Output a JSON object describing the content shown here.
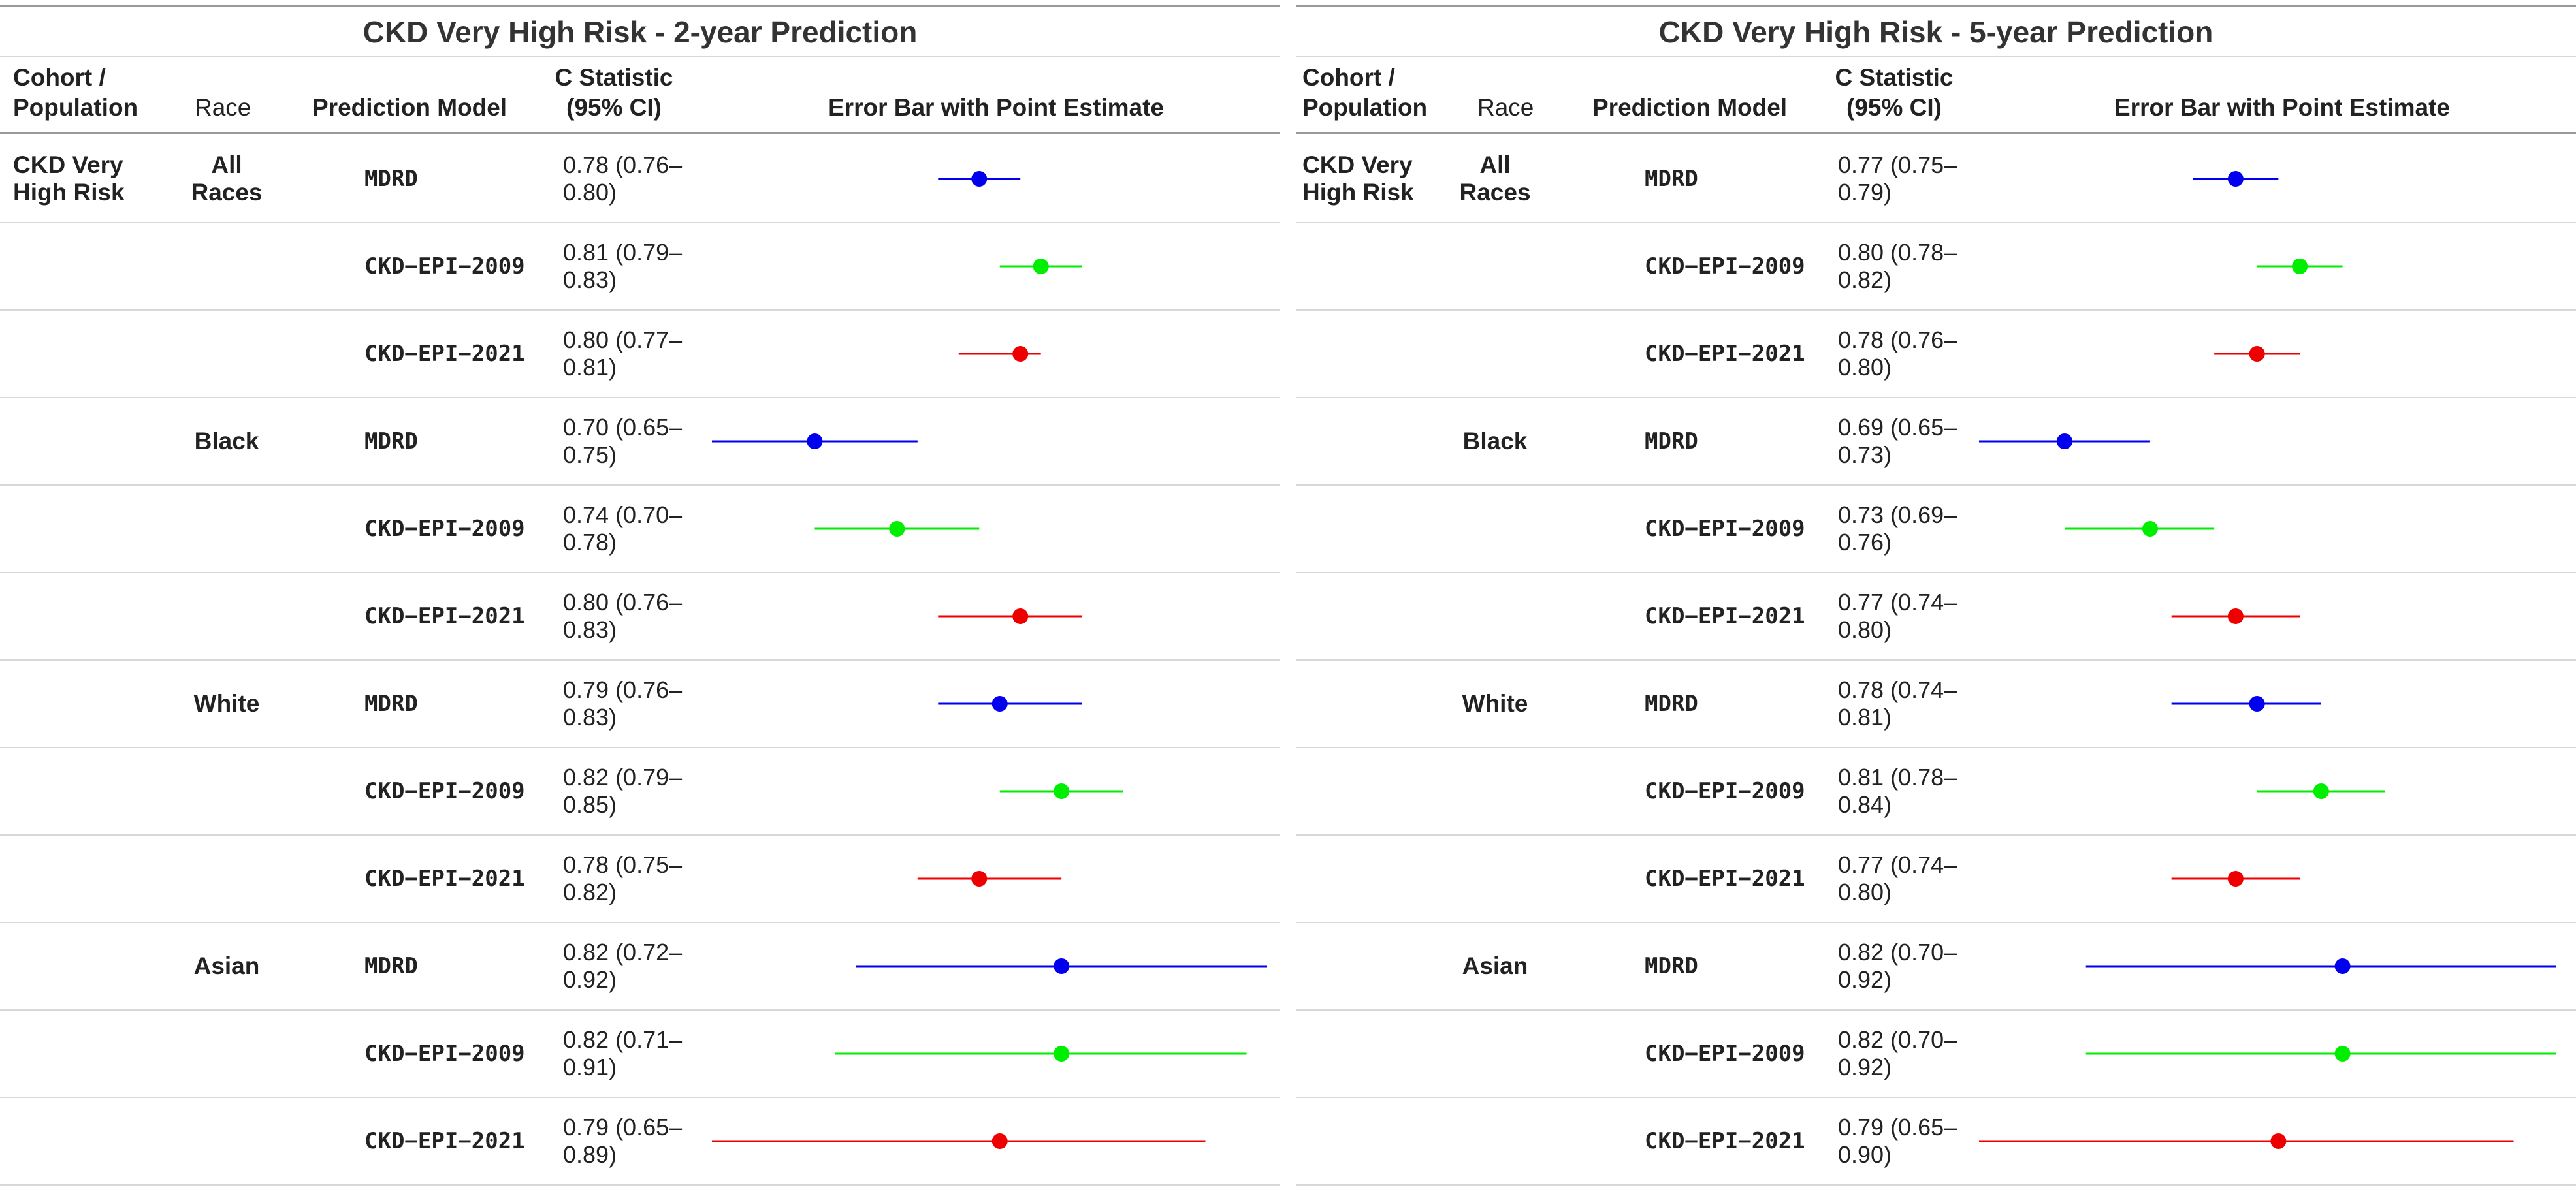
{
  "panels": [
    {
      "title": "CKD Very High Risk - 2-year Prediction",
      "columns": {
        "cohort": "Cohort / Population",
        "race": "Race",
        "model": "Prediction Model",
        "cstat": "C Statistic (95% CI)",
        "plot": "Error Bar with Point Estimate"
      },
      "rows": [
        {
          "cohort": "CKD Very High Risk",
          "race": "All Races",
          "model": "MDRD",
          "ci": "0.78 (0.76– 0.80)",
          "est": 0.78,
          "lo": 0.76,
          "hi": 0.8
        },
        {
          "cohort": "",
          "race": "",
          "model": "CKD−EPI−2009",
          "ci": "0.81 (0.79– 0.83)",
          "est": 0.81,
          "lo": 0.79,
          "hi": 0.83
        },
        {
          "cohort": "",
          "race": "",
          "model": "CKD−EPI−2021",
          "ci": "0.80 (0.77– 0.81)",
          "est": 0.8,
          "lo": 0.77,
          "hi": 0.81
        },
        {
          "cohort": "",
          "race": "Black",
          "model": "MDRD",
          "ci": "0.70 (0.65– 0.75)",
          "est": 0.7,
          "lo": 0.65,
          "hi": 0.75
        },
        {
          "cohort": "",
          "race": "",
          "model": "CKD−EPI−2009",
          "ci": "0.74 (0.70– 0.78)",
          "est": 0.74,
          "lo": 0.7,
          "hi": 0.78
        },
        {
          "cohort": "",
          "race": "",
          "model": "CKD−EPI−2021",
          "ci": "0.80 (0.76– 0.83)",
          "est": 0.8,
          "lo": 0.76,
          "hi": 0.83
        },
        {
          "cohort": "",
          "race": "White",
          "model": "MDRD",
          "ci": "0.79 (0.76– 0.83)",
          "est": 0.79,
          "lo": 0.76,
          "hi": 0.83
        },
        {
          "cohort": "",
          "race": "",
          "model": "CKD−EPI−2009",
          "ci": "0.82 (0.79– 0.85)",
          "est": 0.82,
          "lo": 0.79,
          "hi": 0.85
        },
        {
          "cohort": "",
          "race": "",
          "model": "CKD−EPI−2021",
          "ci": "0.78 (0.75– 0.82)",
          "est": 0.78,
          "lo": 0.75,
          "hi": 0.82
        },
        {
          "cohort": "",
          "race": "Asian",
          "model": "MDRD",
          "ci": "0.82 (0.72– 0.92)",
          "est": 0.82,
          "lo": 0.72,
          "hi": 0.92
        },
        {
          "cohort": "",
          "race": "",
          "model": "CKD−EPI−2009",
          "ci": "0.82 (0.71– 0.91)",
          "est": 0.82,
          "lo": 0.71,
          "hi": 0.91
        },
        {
          "cohort": "",
          "race": "",
          "model": "CKD−EPI−2021",
          "ci": "0.79 (0.65– 0.89)",
          "est": 0.79,
          "lo": 0.65,
          "hi": 0.89
        }
      ]
    },
    {
      "title": "CKD Very High Risk - 5-year Prediction",
      "columns": {
        "cohort": "Cohort / Population",
        "race": "Race",
        "model": "Prediction Model",
        "cstat": "C Statistic (95% CI)",
        "plot": "Error Bar with Point Estimate"
      },
      "rows": [
        {
          "cohort": "CKD Very High Risk",
          "race": "All Races",
          "model": "MDRD",
          "ci": "0.77 (0.75– 0.79)",
          "est": 0.77,
          "lo": 0.75,
          "hi": 0.79
        },
        {
          "cohort": "",
          "race": "",
          "model": "CKD−EPI−2009",
          "ci": "0.80 (0.78– 0.82)",
          "est": 0.8,
          "lo": 0.78,
          "hi": 0.82
        },
        {
          "cohort": "",
          "race": "",
          "model": "CKD−EPI−2021",
          "ci": "0.78 (0.76– 0.80)",
          "est": 0.78,
          "lo": 0.76,
          "hi": 0.8
        },
        {
          "cohort": "",
          "race": "Black",
          "model": "MDRD",
          "ci": "0.69 (0.65– 0.73)",
          "est": 0.69,
          "lo": 0.65,
          "hi": 0.73
        },
        {
          "cohort": "",
          "race": "",
          "model": "CKD−EPI−2009",
          "ci": "0.73 (0.69– 0.76)",
          "est": 0.73,
          "lo": 0.69,
          "hi": 0.76
        },
        {
          "cohort": "",
          "race": "",
          "model": "CKD−EPI−2021",
          "ci": "0.77 (0.74– 0.80)",
          "est": 0.77,
          "lo": 0.74,
          "hi": 0.8
        },
        {
          "cohort": "",
          "race": "White",
          "model": "MDRD",
          "ci": "0.78 (0.74– 0.81)",
          "est": 0.78,
          "lo": 0.74,
          "hi": 0.81
        },
        {
          "cohort": "",
          "race": "",
          "model": "CKD−EPI−2009",
          "ci": "0.81 (0.78– 0.84)",
          "est": 0.81,
          "lo": 0.78,
          "hi": 0.84
        },
        {
          "cohort": "",
          "race": "",
          "model": "CKD−EPI−2021",
          "ci": "0.77 (0.74– 0.80)",
          "est": 0.77,
          "lo": 0.74,
          "hi": 0.8
        },
        {
          "cohort": "",
          "race": "Asian",
          "model": "MDRD",
          "ci": "0.82 (0.70– 0.92)",
          "est": 0.82,
          "lo": 0.7,
          "hi": 0.92
        },
        {
          "cohort": "",
          "race": "",
          "model": "CKD−EPI−2009",
          "ci": "0.82 (0.70– 0.92)",
          "est": 0.82,
          "lo": 0.7,
          "hi": 0.92
        },
        {
          "cohort": "",
          "race": "",
          "model": "CKD−EPI−2021",
          "ci": "0.79 (0.65– 0.90)",
          "est": 0.79,
          "lo": 0.65,
          "hi": 0.9
        }
      ]
    }
  ],
  "chart_data": [
    {
      "type": "scatter",
      "title": "CKD Very High Risk - 2-year Prediction",
      "xlabel": "Error Bar with Point Estimate",
      "categories": [
        "All Races · MDRD",
        "All Races · CKD−EPI−2009",
        "All Races · CKD−EPI−2021",
        "Black · MDRD",
        "Black · CKD−EPI−2009",
        "Black · CKD−EPI−2021",
        "White · MDRD",
        "White · CKD−EPI−2009",
        "White · CKD−EPI−2021",
        "Asian · MDRD",
        "Asian · CKD−EPI−2009",
        "Asian · CKD−EPI−2021"
      ],
      "estimate": [
        0.78,
        0.81,
        0.8,
        0.7,
        0.74,
        0.8,
        0.79,
        0.82,
        0.78,
        0.82,
        0.82,
        0.79
      ],
      "lower": [
        0.76,
        0.79,
        0.77,
        0.65,
        0.7,
        0.76,
        0.76,
        0.79,
        0.75,
        0.72,
        0.71,
        0.65
      ],
      "upper": [
        0.8,
        0.83,
        0.81,
        0.75,
        0.78,
        0.83,
        0.83,
        0.85,
        0.82,
        0.92,
        0.91,
        0.89
      ],
      "xlim": [
        0.65,
        0.92
      ]
    },
    {
      "type": "scatter",
      "title": "CKD Very High Risk - 5-year Prediction",
      "xlabel": "Error Bar with Point Estimate",
      "categories": [
        "All Races · MDRD",
        "All Races · CKD−EPI−2009",
        "All Races · CKD−EPI−2021",
        "Black · MDRD",
        "Black · CKD−EPI−2009",
        "Black · CKD−EPI−2021",
        "White · MDRD",
        "White · CKD−EPI−2009",
        "White · CKD−EPI−2021",
        "Asian · MDRD",
        "Asian · CKD−EPI−2009",
        "Asian · CKD−EPI−2021"
      ],
      "estimate": [
        0.77,
        0.8,
        0.78,
        0.69,
        0.73,
        0.77,
        0.78,
        0.81,
        0.77,
        0.82,
        0.82,
        0.79
      ],
      "lower": [
        0.75,
        0.78,
        0.76,
        0.65,
        0.69,
        0.74,
        0.74,
        0.78,
        0.74,
        0.7,
        0.7,
        0.65
      ],
      "upper": [
        0.79,
        0.82,
        0.8,
        0.73,
        0.76,
        0.8,
        0.81,
        0.84,
        0.8,
        0.92,
        0.92,
        0.9
      ],
      "xlim": [
        0.65,
        0.92
      ]
    }
  ],
  "model_colors": {
    "MDRD": "#0000ee",
    "CKD−EPI−2009": "#00ee00",
    "CKD−EPI−2021": "#ee0000"
  }
}
